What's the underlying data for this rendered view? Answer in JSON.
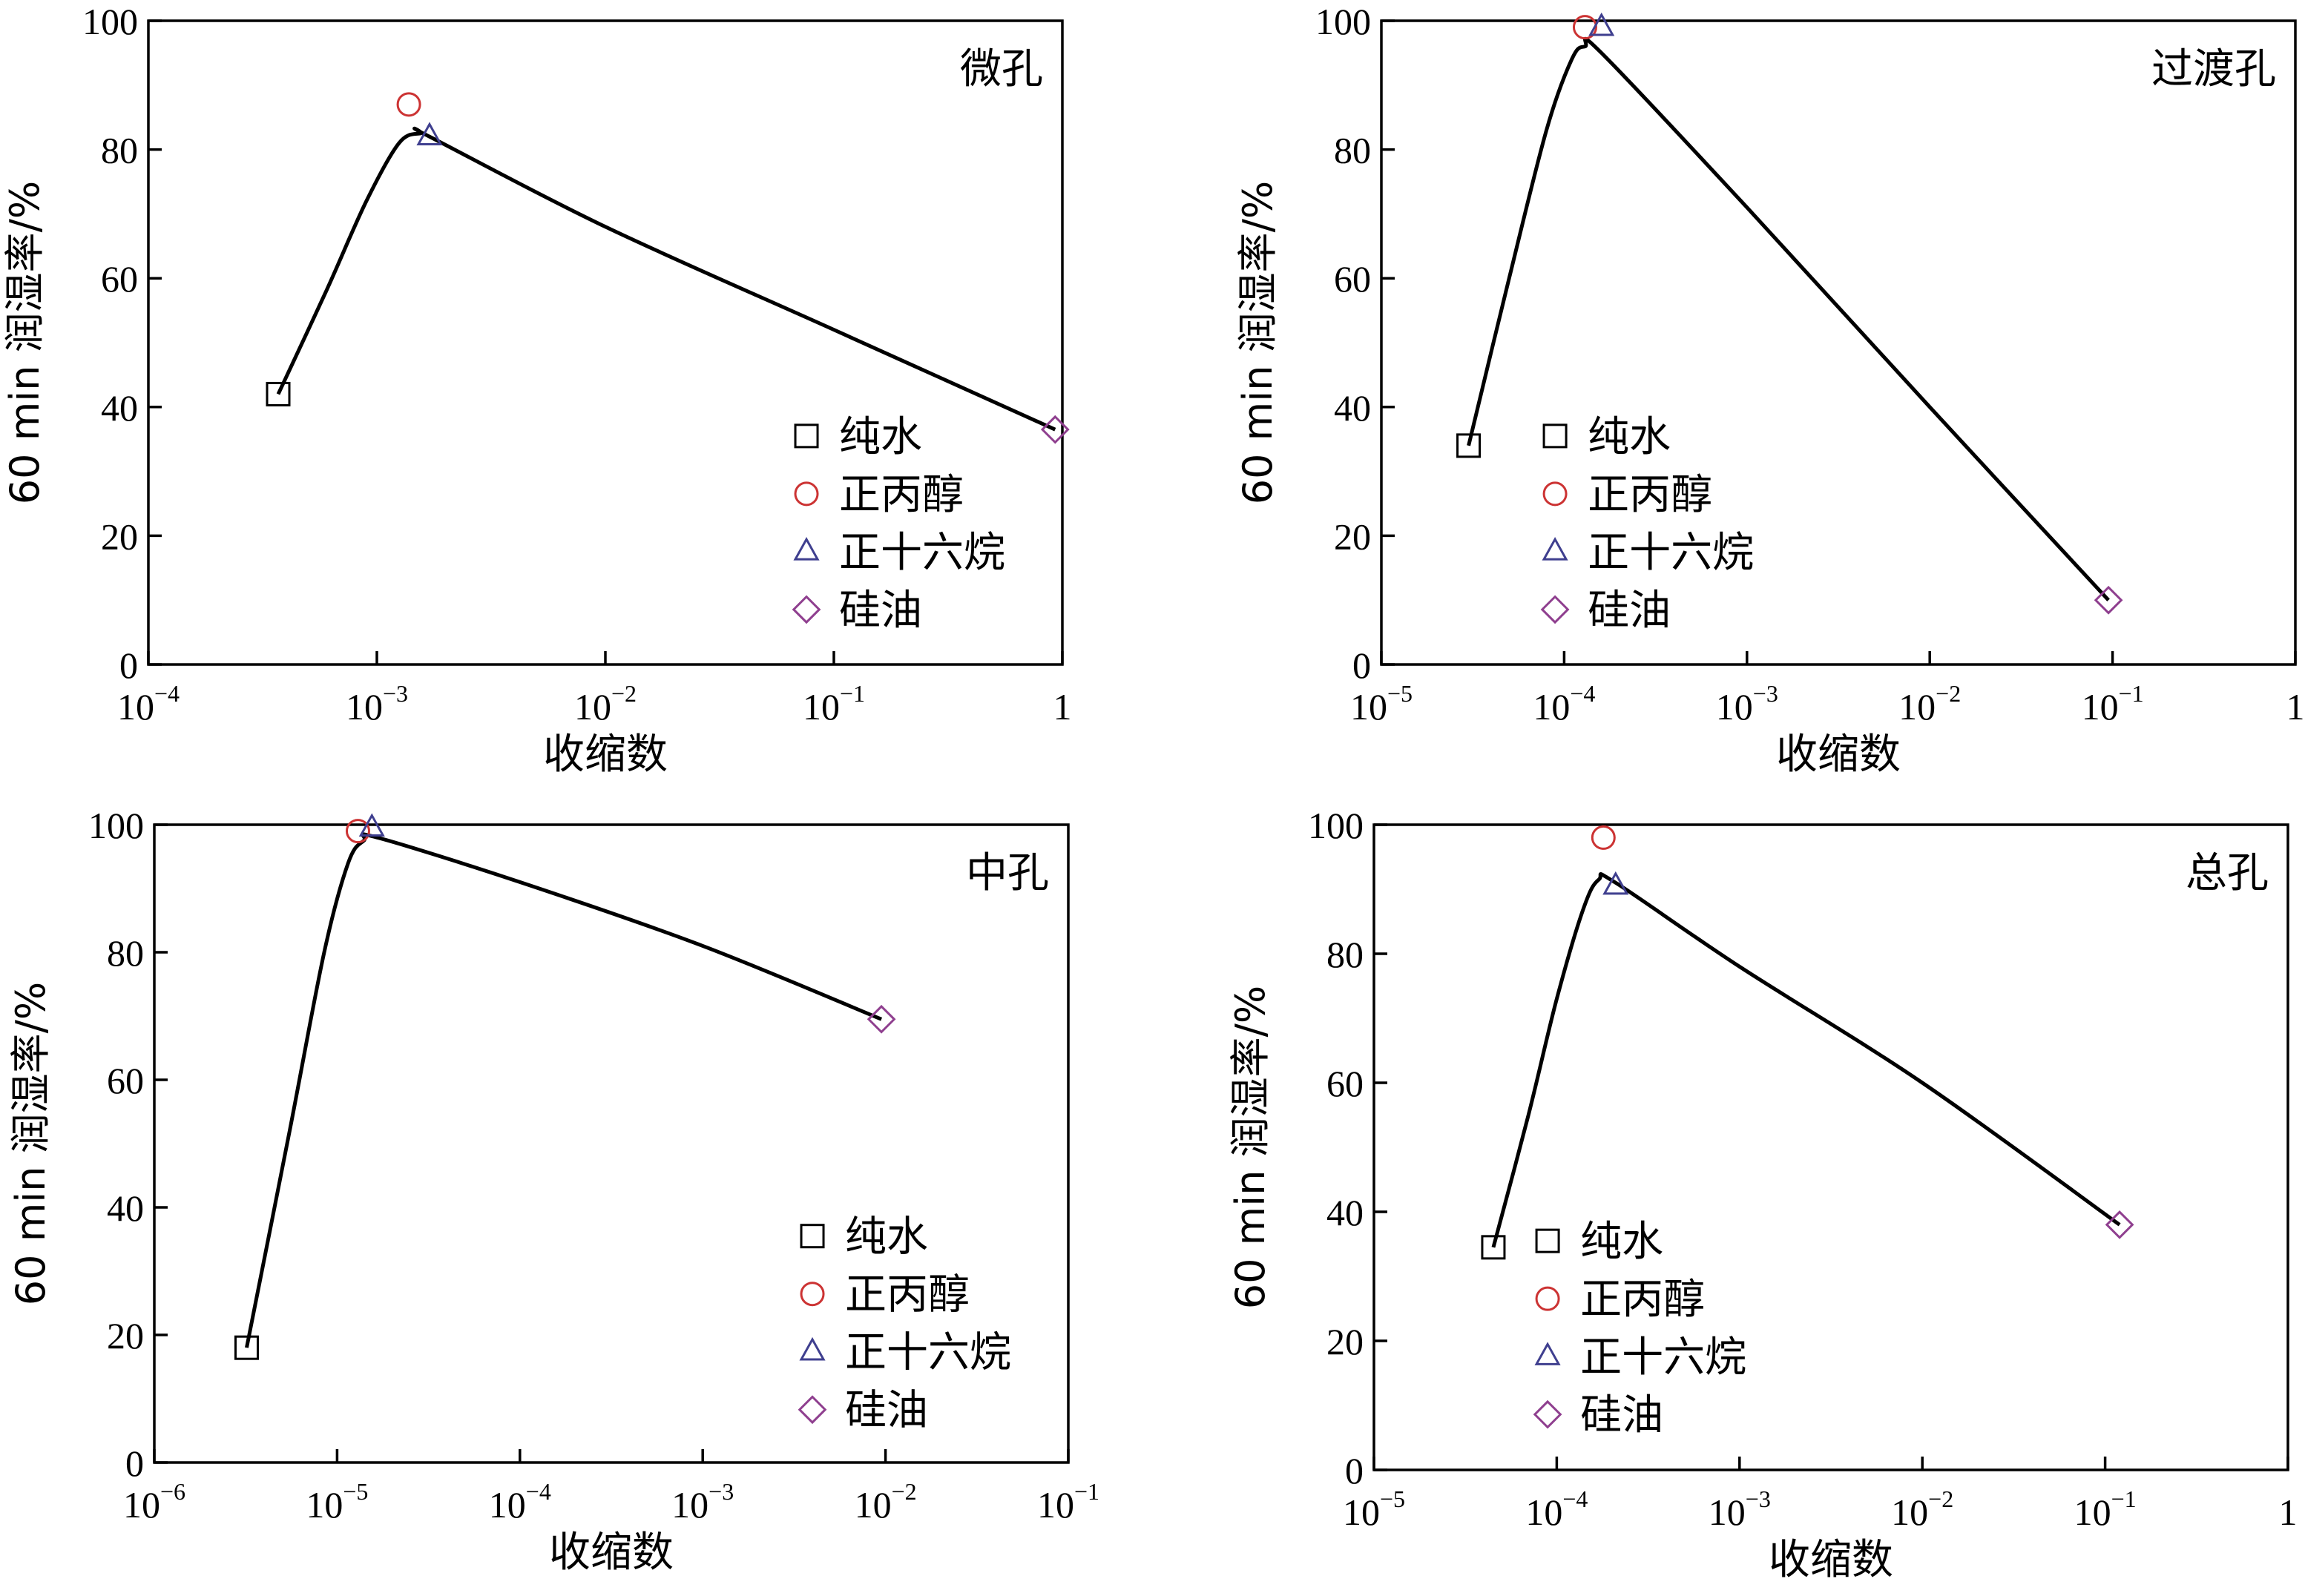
{
  "chart_data": [
    {
      "type": "scatter",
      "label": "微孔",
      "xlabel": "收缩数",
      "ylabel": "60 min 润湿率/%",
      "xscale": "log",
      "xlim": [
        0.0001,
        1
      ],
      "ylim": [
        0,
        100
      ],
      "xticks": [
        0.0001,
        0.001,
        0.01,
        0.1,
        1
      ],
      "xtick_labels": [
        {
          "base": "10",
          "exp": "−4"
        },
        {
          "base": "10",
          "exp": "−3"
        },
        {
          "base": "10",
          "exp": "−2"
        },
        {
          "base": "10",
          "exp": "−1"
        },
        {
          "base": "1",
          "exp": ""
        }
      ],
      "yticks": [
        0,
        20,
        40,
        60,
        80,
        100
      ],
      "legend_position": "lower-right",
      "series": [
        {
          "name": "纯水",
          "marker": "square",
          "color": "#000000",
          "x": [
            0.00037
          ],
          "y": [
            42
          ]
        },
        {
          "name": "正丙醇",
          "marker": "circle",
          "color": "#cc3333",
          "x": [
            0.00138
          ],
          "y": [
            87
          ]
        },
        {
          "name": "正十六烷",
          "marker": "triangle",
          "color": "#3f3f8f",
          "x": [
            0.0017
          ],
          "y": [
            82
          ]
        },
        {
          "name": "硅油",
          "marker": "diamond",
          "color": "#8f3f8f",
          "x": [
            0.93
          ],
          "y": [
            36.5
          ]
        }
      ],
      "fit_curve": {
        "x": [
          0.00037,
          0.0006,
          0.0009,
          0.00125,
          0.00155,
          0.0017,
          0.01,
          0.1,
          0.93
        ],
        "y": [
          42,
          58,
          72,
          81,
          82.5,
          82,
          68,
          52,
          36.5
        ]
      }
    },
    {
      "type": "scatter",
      "label": "过渡孔",
      "xlabel": "收缩数",
      "ylabel": "60 min 润湿率/%",
      "xscale": "log",
      "xlim": [
        1e-05,
        1
      ],
      "ylim": [
        0,
        100
      ],
      "xticks": [
        1e-05,
        0.0001,
        0.001,
        0.01,
        0.1,
        1
      ],
      "xtick_labels": [
        {
          "base": "10",
          "exp": "−5"
        },
        {
          "base": "10",
          "exp": "−4"
        },
        {
          "base": "10",
          "exp": "−3"
        },
        {
          "base": "10",
          "exp": "−2"
        },
        {
          "base": "10",
          "exp": "−1"
        },
        {
          "base": "1",
          "exp": ""
        }
      ],
      "yticks": [
        0,
        20,
        40,
        60,
        80,
        100
      ],
      "legend_position": "lower-left",
      "series": [
        {
          "name": "纯水",
          "marker": "square",
          "color": "#000000",
          "x": [
            3e-05
          ],
          "y": [
            34
          ]
        },
        {
          "name": "正丙醇",
          "marker": "circle",
          "color": "#cc3333",
          "x": [
            0.00013
          ],
          "y": [
            99
          ]
        },
        {
          "name": "正十六烷",
          "marker": "triangle",
          "color": "#3f3f8f",
          "x": [
            0.00016
          ],
          "y": [
            99
          ]
        },
        {
          "name": "硅油",
          "marker": "diamond",
          "color": "#8f3f8f",
          "x": [
            0.095
          ],
          "y": [
            10
          ]
        }
      ],
      "fit_curve": {
        "x": [
          3e-05,
          5e-05,
          8e-05,
          0.00011,
          0.00013,
          0.00016,
          0.001,
          0.01,
          0.095
        ],
        "y": [
          34,
          60,
          83,
          94,
          96,
          95,
          71,
          40,
          10
        ]
      }
    },
    {
      "type": "scatter",
      "label": "中孔",
      "xlabel": "收缩数",
      "ylabel": "60 min 润湿率/%",
      "xscale": "log",
      "xlim": [
        1e-06,
        0.1
      ],
      "ylim": [
        0,
        100
      ],
      "xticks": [
        1e-06,
        1e-05,
        0.0001,
        0.001,
        0.01,
        0.1
      ],
      "xtick_labels": [
        {
          "base": "10",
          "exp": "−6"
        },
        {
          "base": "10",
          "exp": "−5"
        },
        {
          "base": "10",
          "exp": "−4"
        },
        {
          "base": "10",
          "exp": "−3"
        },
        {
          "base": "10",
          "exp": "−2"
        },
        {
          "base": "10",
          "exp": "−1"
        }
      ],
      "yticks": [
        0,
        20,
        40,
        60,
        80,
        100
      ],
      "legend_position": "lower-right",
      "series": [
        {
          "name": "纯水",
          "marker": "square",
          "color": "#000000",
          "x": [
            3.2e-06
          ],
          "y": [
            18
          ]
        },
        {
          "name": "正丙醇",
          "marker": "circle",
          "color": "#cc3333",
          "x": [
            1.3e-05
          ],
          "y": [
            99
          ]
        },
        {
          "name": "正十六烷",
          "marker": "triangle",
          "color": "#3f3f8f",
          "x": [
            1.55e-05
          ],
          "y": [
            99.5
          ]
        },
        {
          "name": "硅油",
          "marker": "diamond",
          "color": "#8f3f8f",
          "x": [
            0.0095
          ],
          "y": [
            69.5
          ]
        }
      ],
      "fit_curve": {
        "x": [
          3.2e-06,
          5.5e-06,
          8.5e-06,
          1.15e-05,
          1.4e-05,
          1.65e-05,
          0.0001,
          0.001,
          0.0095
        ],
        "y": [
          18,
          52,
          80,
          94,
          97.5,
          98,
          91,
          81,
          69.5
        ]
      }
    },
    {
      "type": "scatter",
      "label": "总孔",
      "xlabel": "收缩数",
      "ylabel": "60 min 润湿率/%",
      "xscale": "log",
      "xlim": [
        1e-05,
        1
      ],
      "ylim": [
        0,
        100
      ],
      "xticks": [
        1e-05,
        0.0001,
        0.001,
        0.01,
        0.1,
        1
      ],
      "xtick_labels": [
        {
          "base": "10",
          "exp": "−5"
        },
        {
          "base": "10",
          "exp": "−4"
        },
        {
          "base": "10",
          "exp": "−3"
        },
        {
          "base": "10",
          "exp": "−2"
        },
        {
          "base": "10",
          "exp": "−1"
        },
        {
          "base": "1",
          "exp": ""
        }
      ],
      "yticks": [
        0,
        20,
        40,
        60,
        80,
        100
      ],
      "legend_position": "lower-left",
      "series": [
        {
          "name": "纯水",
          "marker": "square",
          "color": "#000000",
          "x": [
            4.5e-05
          ],
          "y": [
            34.5
          ]
        },
        {
          "name": "正丙醇",
          "marker": "circle",
          "color": "#cc3333",
          "x": [
            0.00018
          ],
          "y": [
            98
          ]
        },
        {
          "name": "正十六烷",
          "marker": "triangle",
          "color": "#3f3f8f",
          "x": [
            0.00021
          ],
          "y": [
            90.5
          ]
        },
        {
          "name": "硅油",
          "marker": "diamond",
          "color": "#8f3f8f",
          "x": [
            0.12
          ],
          "y": [
            38
          ]
        }
      ],
      "fit_curve": {
        "x": [
          4.5e-05,
          7e-05,
          0.0001,
          0.00014,
          0.00017,
          0.00021,
          0.001,
          0.01,
          0.12
        ],
        "y": [
          34.5,
          55,
          73,
          87,
          91.5,
          91,
          78,
          60,
          38
        ]
      }
    }
  ]
}
